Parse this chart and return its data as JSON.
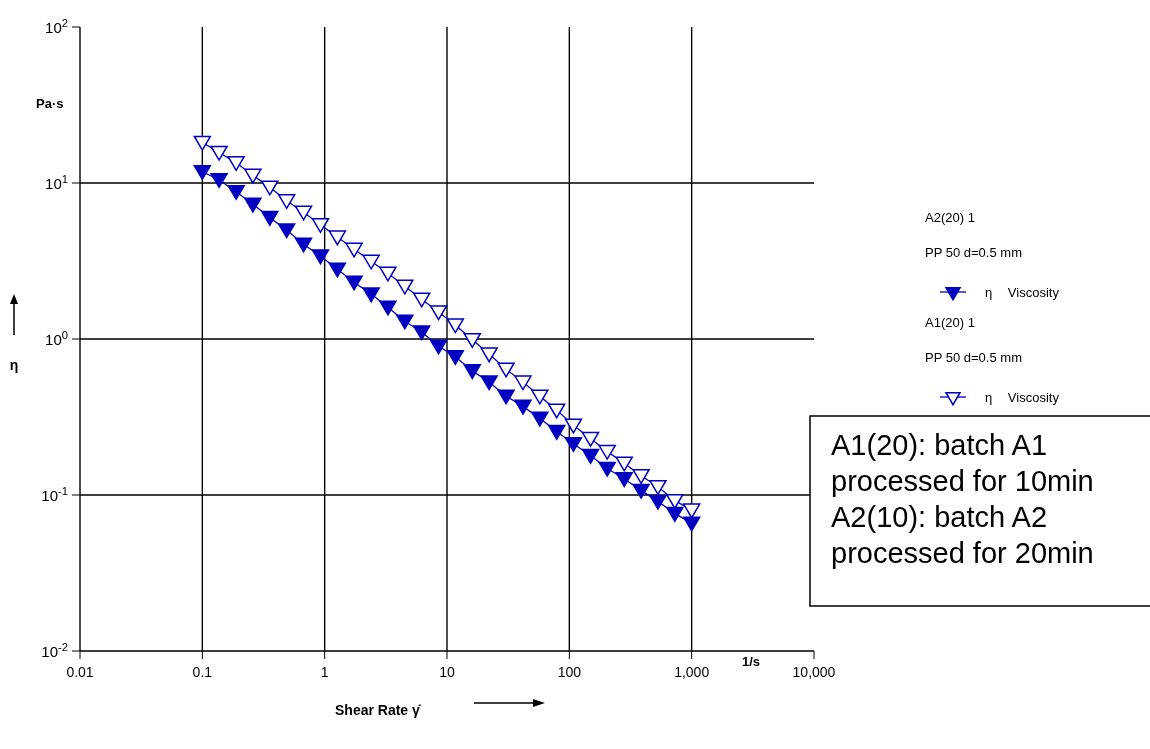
{
  "chart_data": {
    "type": "line",
    "xlabel": "Shear Rate γ̇",
    "ylabel": "η",
    "annotations": [
      "A2(20) 1",
      "PP 50 d=0.5 mm",
      "A1(20) 1",
      "PP 50 d=0.5 mm",
      "Pa·s",
      "1/s",
      "A1(20): batch A1 processed for 10min",
      "A2(10): batch A2 processed for 20min"
    ],
    "x": [
      0.1,
      0.137,
      0.189,
      0.259,
      0.356,
      0.489,
      0.672,
      0.924,
      1.27,
      1.74,
      2.4,
      3.29,
      4.52,
      6.21,
      8.53,
      11.7,
      16.1,
      22.1,
      30.4,
      41.8,
      57.4,
      78.8,
      108,
      149,
      204,
      281,
      386,
      530,
      728,
      1000
    ],
    "series": [
      {
        "name": "η Viscosity",
        "color": "#0000c0",
        "values": [
          11.8,
          10.5,
          8.8,
          7.3,
          6.0,
          5.0,
          4.05,
          3.4,
          2.8,
          2.31,
          1.94,
          1.6,
          1.3,
          1.11,
          0.9,
          0.77,
          0.625,
          0.53,
          0.43,
          0.37,
          0.31,
          0.255,
          0.213,
          0.179,
          0.148,
          0.127,
          0.107,
          0.091,
          0.076,
          0.066
        ]
      },
      {
        "name": "η Viscosity",
        "color": "#0000c0",
        "values": [
          18.2,
          15.7,
          13.5,
          11.2,
          9.4,
          7.7,
          6.5,
          5.4,
          4.5,
          3.76,
          3.15,
          2.64,
          2.18,
          1.8,
          1.49,
          1.23,
          0.99,
          0.8,
          0.64,
          0.53,
          0.43,
          0.35,
          0.28,
          0.23,
          0.19,
          0.16,
          0.133,
          0.113,
          0.092,
          0.08
        ]
      }
    ],
    "log": "xy",
    "xlim": [
      0.01,
      10000
    ],
    "ylim": [
      0.01,
      100
    ],
    "xticks": [
      0.01,
      0.1,
      1,
      10,
      100,
      {
        "value": 1000,
        "label": "1,000"
      },
      {
        "value": 10000,
        "label": "10,000"
      }
    ],
    "yticks": [
      {
        "value": 0.01,
        "label": "10$^{-2}$"
      },
      {
        "value": 0.1,
        "label": "10$^{-1}$"
      },
      {
        "value": 1,
        "label": "10$^{0}$"
      },
      {
        "value": 10,
        "label": "10$^{1}$"
      },
      {
        "value": 100,
        "label": "10$^{2}$"
      }
    ],
    "grid": true,
    "legend": "right",
    "marker": "triangle",
    "line_style": "solid"
  }
}
